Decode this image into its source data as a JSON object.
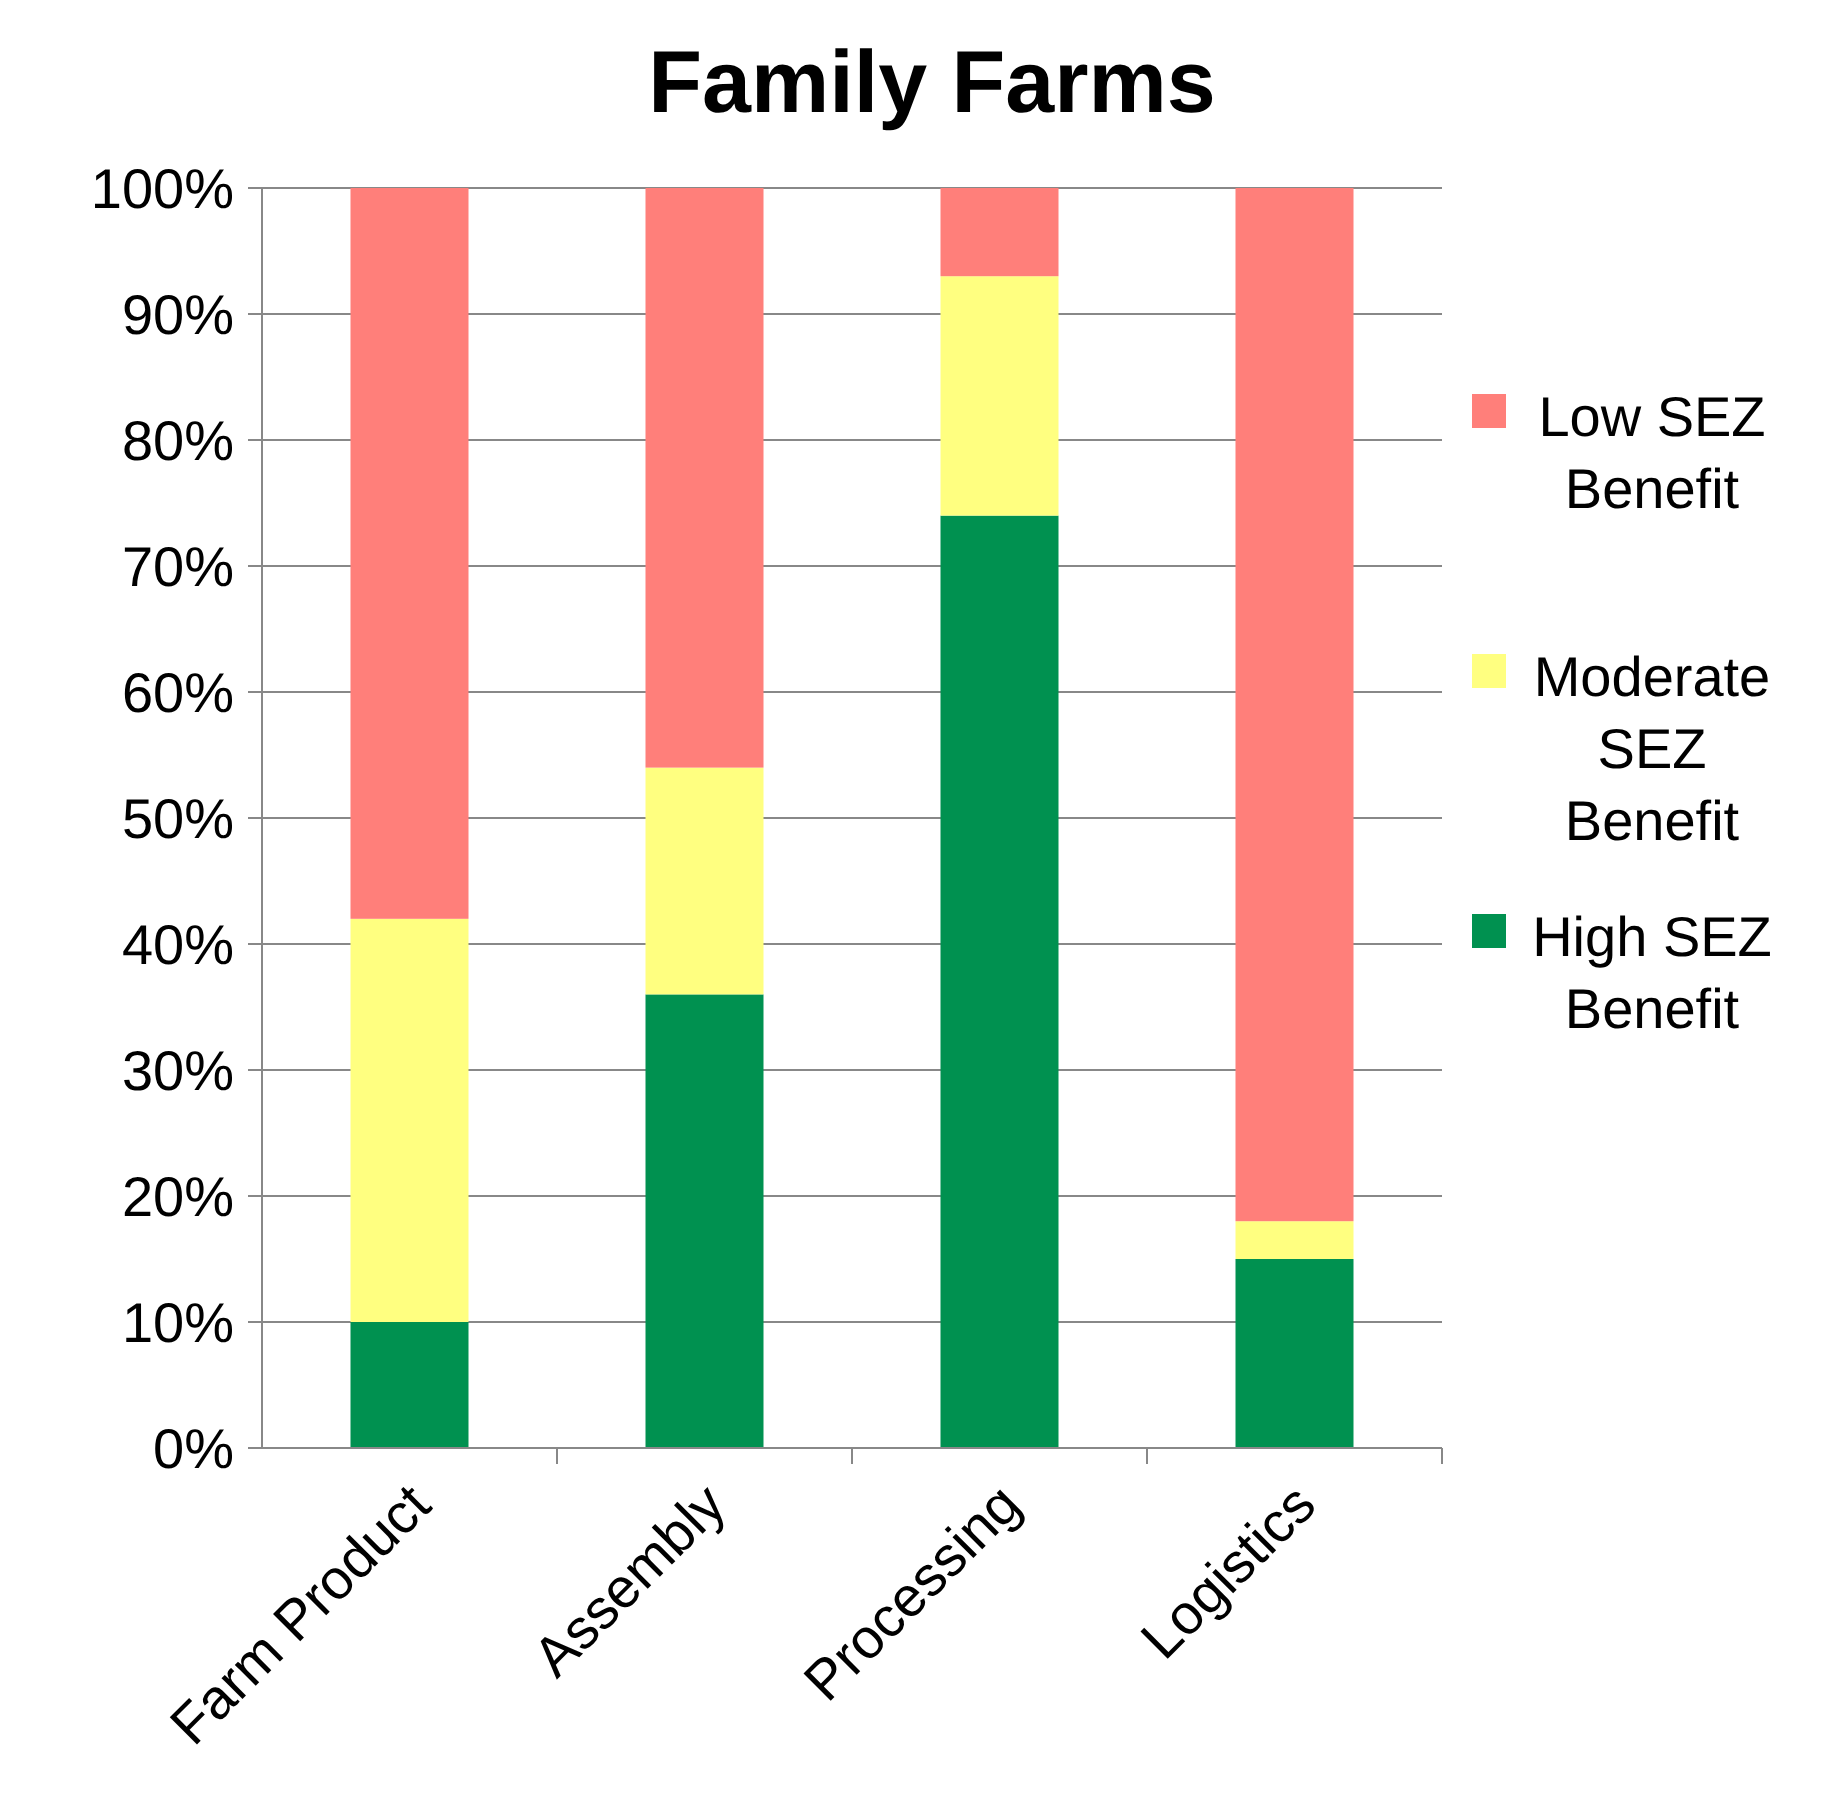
{
  "chart_data": {
    "type": "bar",
    "title": "Family Farms",
    "stacked": true,
    "categories": [
      "Farm Product",
      "Assembly",
      "Processing",
      "Logistics"
    ],
    "series": [
      {
        "name": "High SEZ Benefit",
        "color": "#009150",
        "values": [
          10,
          36,
          74,
          15
        ]
      },
      {
        "name": "Moderate SEZ Benefit",
        "color": "#ffff80",
        "values": [
          32,
          18,
          19,
          3
        ]
      },
      {
        "name": "Low SEZ Benefit",
        "color": "#ff7f7a",
        "values": [
          58,
          46,
          7,
          82
        ]
      }
    ],
    "ylim": [
      0,
      100
    ],
    "yticks": [
      {
        "value": 0,
        "label": "0%"
      },
      {
        "value": 10,
        "label": "10%"
      },
      {
        "value": 20,
        "label": "20%"
      },
      {
        "value": 30,
        "label": "30%"
      },
      {
        "value": 40,
        "label": "40%"
      },
      {
        "value": 50,
        "label": "50%"
      },
      {
        "value": 60,
        "label": "60%"
      },
      {
        "value": 70,
        "label": "70%"
      },
      {
        "value": 80,
        "label": "80%"
      },
      {
        "value": 90,
        "label": "90%"
      },
      {
        "value": 100,
        "label": "100%"
      }
    ],
    "grid": "y",
    "legend": "right"
  }
}
